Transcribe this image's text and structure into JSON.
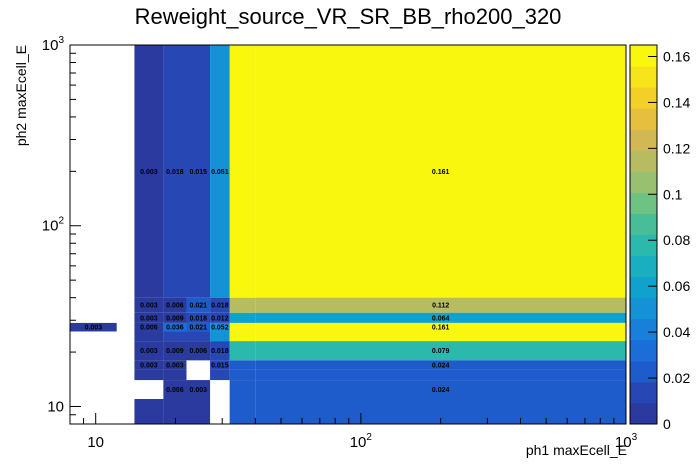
{
  "chart_data": {
    "type": "heatmap",
    "title": "Reweight_source_VR_SR_BB_rho200_320",
    "xlabel": "ph1 maxEcell_E",
    "ylabel": "ph2 maxEcell_E",
    "x_scale": "log",
    "y_scale": "log",
    "xlim": [
      8,
      1000
    ],
    "ylim": [
      8,
      1000
    ],
    "zlim": [
      0,
      0.165
    ],
    "x_ticks": [
      {
        "base": "10",
        "exp": ""
      },
      {
        "base": "10",
        "exp": "2"
      },
      {
        "base": "10",
        "exp": "3"
      }
    ],
    "y_ticks": [
      {
        "base": "10",
        "exp": ""
      },
      {
        "base": "10",
        "exp": "2"
      },
      {
        "base": "10",
        "exp": "3"
      }
    ],
    "z_ticks": [
      "0",
      "0.02",
      "0.04",
      "0.06",
      "0.08",
      "0.1",
      "0.12",
      "0.14",
      "0.16"
    ],
    "x_edges": [
      8,
      12,
      14,
      18,
      22,
      27,
      32,
      40,
      1000
    ],
    "y_edges": [
      8,
      11,
      14,
      16,
      18,
      23,
      26,
      29,
      33,
      40,
      1000
    ],
    "cells": [
      {
        "ix": 2,
        "iy": 9,
        "value": 0.003,
        "label": "0.003"
      },
      {
        "ix": 3,
        "iy": 9,
        "value": 0.018,
        "label": "0.018"
      },
      {
        "ix": 4,
        "iy": 9,
        "value": 0.015,
        "label": "0.015"
      },
      {
        "ix": 5,
        "iy": 9,
        "value": 0.051,
        "label": "0.051"
      },
      {
        "ix": 7,
        "iy": 9,
        "value": 0.161,
        "label": "0.161"
      },
      {
        "ix": 2,
        "iy": 8,
        "value": 0.003,
        "label": "0.003"
      },
      {
        "ix": 3,
        "iy": 8,
        "value": 0.006,
        "label": "0.006"
      },
      {
        "ix": 4,
        "iy": 8,
        "value": 0.021,
        "label": "0.021"
      },
      {
        "ix": 5,
        "iy": 8,
        "value": 0.018,
        "label": "0.018"
      },
      {
        "ix": 7,
        "iy": 8,
        "value": 0.112,
        "label": "0.112"
      },
      {
        "ix": 2,
        "iy": 7,
        "value": 0.003,
        "label": "0.003"
      },
      {
        "ix": 3,
        "iy": 7,
        "value": 0.009,
        "label": "0.009"
      },
      {
        "ix": 4,
        "iy": 7,
        "value": 0.018,
        "label": "0.018"
      },
      {
        "ix": 5,
        "iy": 7,
        "value": 0.012,
        "label": "0.012"
      },
      {
        "ix": 7,
        "iy": 7,
        "value": 0.064,
        "label": "0.064"
      },
      {
        "ix": 0,
        "iy": 6,
        "value": 0.003,
        "label": "0.003"
      },
      {
        "ix": 2,
        "iy": 6,
        "value": 0.006,
        "label": "0.006"
      },
      {
        "ix": 3,
        "iy": 6,
        "value": 0.036,
        "label": "0.036"
      },
      {
        "ix": 4,
        "iy": 6,
        "value": 0.021,
        "label": "0.021"
      },
      {
        "ix": 5,
        "iy": 6,
        "value": 0.052,
        "label": "0.052"
      },
      {
        "ix": 7,
        "iy": 6,
        "value": 0.161,
        "label": "0.161"
      },
      {
        "ix": 2,
        "iy": 4,
        "value": 0.003,
        "label": "0.003"
      },
      {
        "ix": 3,
        "iy": 4,
        "value": 0.009,
        "label": "0.009"
      },
      {
        "ix": 4,
        "iy": 4,
        "value": 0.006,
        "label": "0.006"
      },
      {
        "ix": 5,
        "iy": 4,
        "value": 0.018,
        "label": "0.018"
      },
      {
        "ix": 7,
        "iy": 4,
        "value": 0.079,
        "label": "0.079"
      },
      {
        "ix": 2,
        "iy": 3,
        "value": 0.003,
        "label": "0.003"
      },
      {
        "ix": 3,
        "iy": 3,
        "value": 0.003,
        "label": "0.003"
      },
      {
        "ix": 5,
        "iy": 3,
        "value": 0.015,
        "label": "0.015"
      },
      {
        "ix": 7,
        "iy": 3,
        "value": 0.024,
        "label": "0.024"
      },
      {
        "ix": 3,
        "iy": 1,
        "value": 0.006,
        "label": "0.006"
      },
      {
        "ix": 4,
        "iy": 1,
        "value": 0.003,
        "label": "0.003"
      },
      {
        "ix": 7,
        "iy": 1,
        "value": 0.024,
        "label": "0.024"
      }
    ],
    "fill_cells": [
      {
        "ix": 2,
        "iy": 0,
        "value": 0.003
      },
      {
        "ix": 3,
        "iy": 0,
        "value": 0.006
      },
      {
        "ix": 4,
        "iy": 0,
        "value": 0.003
      },
      {
        "ix": 6,
        "iy": 0,
        "value": 0.024
      },
      {
        "ix": 7,
        "iy": 0,
        "value": 0.024
      },
      {
        "ix": 6,
        "iy": 1,
        "value": 0.024
      },
      {
        "ix": 6,
        "iy": 3,
        "value": 0.024
      },
      {
        "ix": 6,
        "iy": 4,
        "value": 0.079
      },
      {
        "ix": 2,
        "iy": 5,
        "value": 0.003
      },
      {
        "ix": 3,
        "iy": 5,
        "value": 0.018
      },
      {
        "ix": 4,
        "iy": 5,
        "value": 0.015
      },
      {
        "ix": 5,
        "iy": 5,
        "value": 0.051
      },
      {
        "ix": 6,
        "iy": 5,
        "value": 0.161
      },
      {
        "ix": 7,
        "iy": 5,
        "value": 0.161
      },
      {
        "ix": 6,
        "iy": 6,
        "value": 0.161
      },
      {
        "ix": 6,
        "iy": 7,
        "value": 0.064
      },
      {
        "ix": 6,
        "iy": 8,
        "value": 0.112
      },
      {
        "ix": 6,
        "iy": 9,
        "value": 0.161
      },
      {
        "ix": 2,
        "iy": 2,
        "value": 0.003
      },
      {
        "ix": 3,
        "iy": 2,
        "value": 0.003
      },
      {
        "ix": 5,
        "iy": 2,
        "value": 0.015
      },
      {
        "ix": 6,
        "iy": 2,
        "value": 0.024
      },
      {
        "ix": 7,
        "iy": 2,
        "value": 0.024
      }
    ],
    "palette": [
      "#2a3a9e",
      "#2748b4",
      "#1f5ccb",
      "#1b6ed8",
      "#1880d9",
      "#1492d5",
      "#0ea2cc",
      "#19afc0",
      "#2bb8ad",
      "#48be98",
      "#6ec282",
      "#98c06e",
      "#b7bc60",
      "#d2b852",
      "#e7bf3e",
      "#f4cf27",
      "#f8e519",
      "#f8f70d"
    ]
  }
}
